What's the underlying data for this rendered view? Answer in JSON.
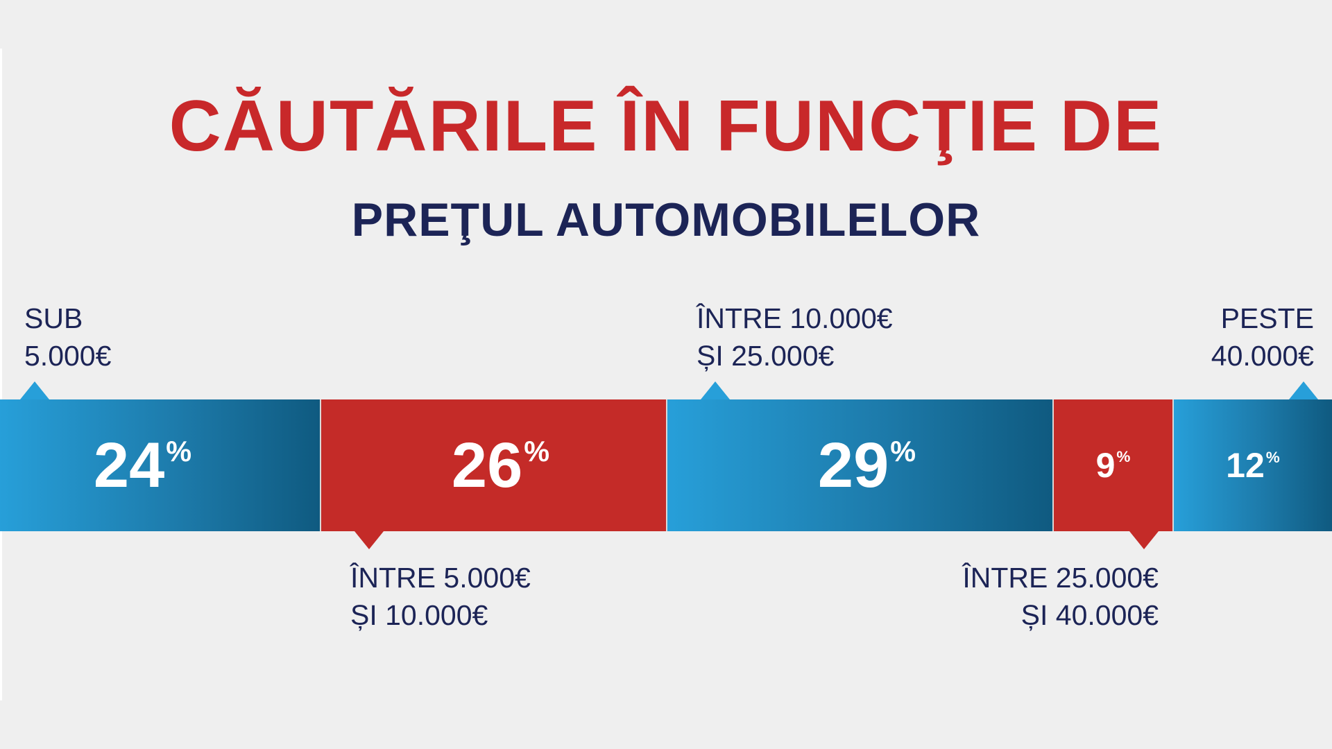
{
  "title": "CĂUTĂRILE ÎN FUNCŢIE DE",
  "subtitle": "PREŢUL AUTOMOBILELOR",
  "colors": {
    "red": "#c42b28",
    "blue_light": "#279fd9",
    "blue_dark": "#0f5a80",
    "navy_text": "#1c2456",
    "title_red": "#c8282a",
    "background": "#efefef"
  },
  "chart_data": {
    "type": "bar",
    "orientation": "horizontal-stacked",
    "unit": "%",
    "categories": [
      "SUB 5.000€",
      "ÎNTRE 5.000€ ȘI 10.000€",
      "ÎNTRE 10.000€ ȘI 25.000€",
      "ÎNTRE 25.000€ ȘI 40.000€",
      "PESTE 40.000€"
    ],
    "values": [
      24,
      26,
      29,
      9,
      12
    ],
    "segments": [
      {
        "value": 24,
        "value_label": "24",
        "pct": "%",
        "color": "blue",
        "label_lines": [
          "SUB",
          "5.000€"
        ],
        "label_side": "top",
        "align": "left"
      },
      {
        "value": 26,
        "value_label": "26",
        "pct": "%",
        "color": "red",
        "label_lines": [
          "ÎNTRE 5.000€",
          "ȘI 10.000€"
        ],
        "label_side": "bottom",
        "align": "left"
      },
      {
        "value": 29,
        "value_label": "29",
        "pct": "%",
        "color": "blue",
        "label_lines": [
          "ÎNTRE 10.000€",
          "ȘI 25.000€"
        ],
        "label_side": "top",
        "align": "left"
      },
      {
        "value": 9,
        "value_label": "9",
        "pct": "%",
        "color": "red",
        "label_lines": [
          "ÎNTRE 25.000€",
          "ȘI 40.000€"
        ],
        "label_side": "bottom",
        "align": "right"
      },
      {
        "value": 12,
        "value_label": "12",
        "pct": "%",
        "color": "blue",
        "label_lines": [
          "PESTE",
          "40.000€"
        ],
        "label_side": "top",
        "align": "right"
      }
    ]
  }
}
